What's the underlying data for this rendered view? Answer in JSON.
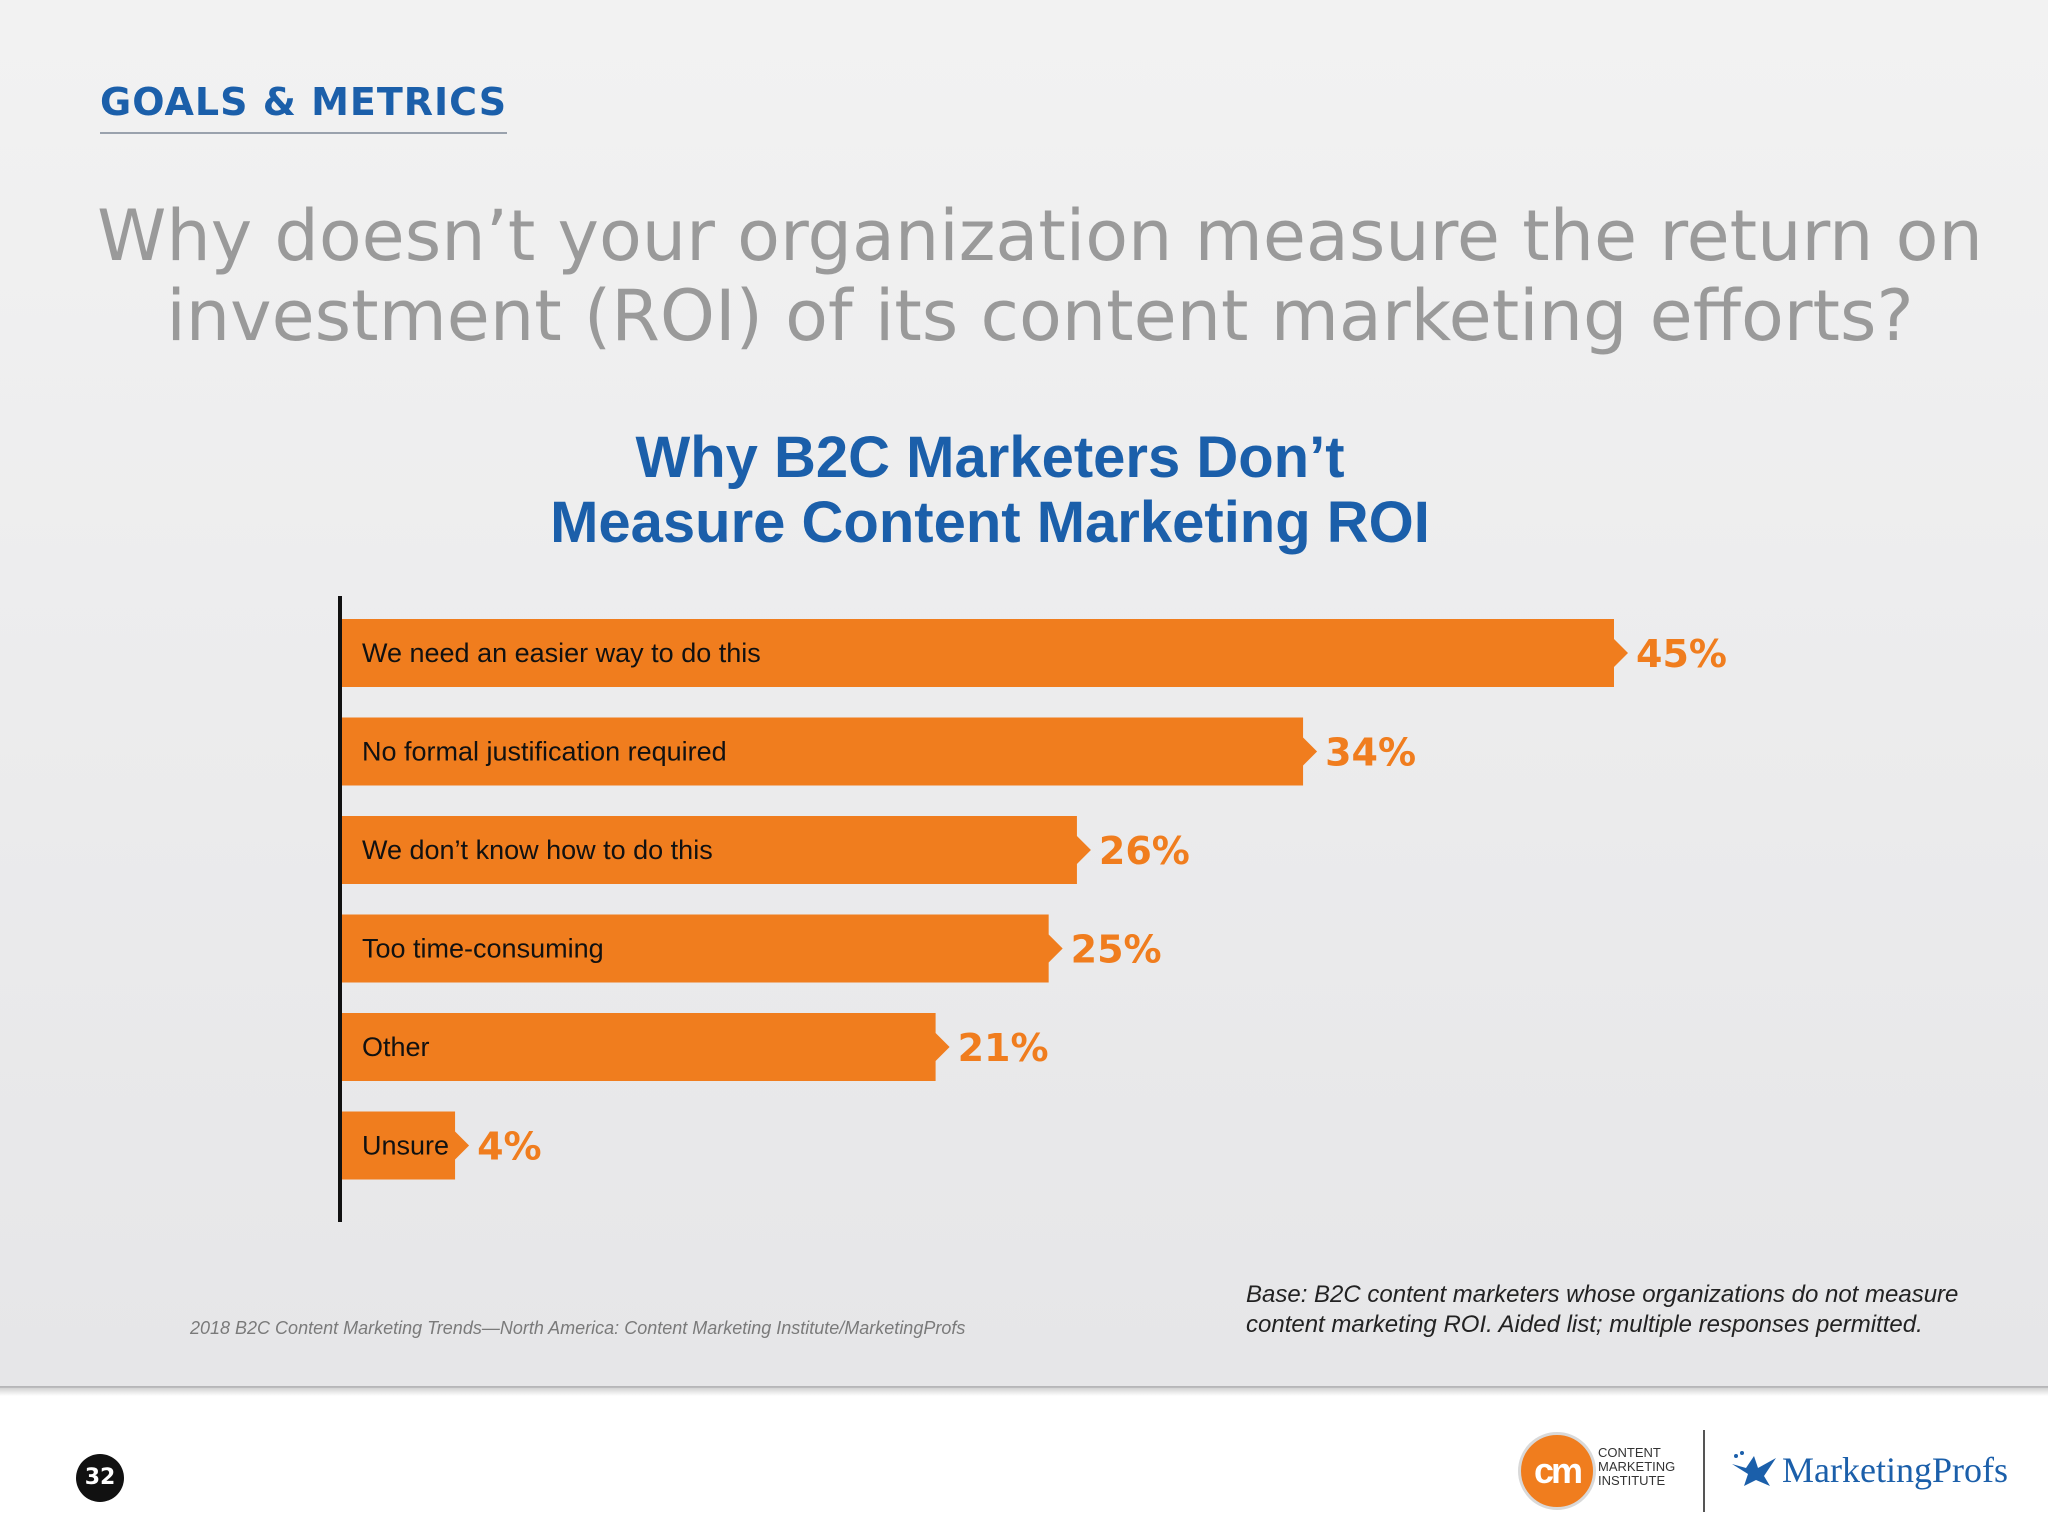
{
  "header": {
    "section_tag": "GOALS & METRICS",
    "question_line1": "Why doesn’t your organization measure the return on",
    "question_line2": "investment (ROI) of its content marketing efforts?"
  },
  "chart_data": {
    "type": "bar",
    "orientation": "horizontal",
    "title": "Why B2C Marketers Don’t Measure Content Marketing ROI",
    "title_line1": "Why B2C Marketers Don’t",
    "title_line2": "Measure Content Marketing ROI",
    "categories": [
      "We need an easier way to do this",
      "No formal justification required",
      "We don’t know how to do this",
      "Too time-consuming",
      "Other",
      "Unsure"
    ],
    "values": [
      45,
      34,
      26,
      25,
      21,
      4
    ],
    "value_labels": [
      "45%",
      "34%",
      "26%",
      "25%",
      "21%",
      "4%"
    ],
    "unit": "%",
    "xlim": [
      0,
      45
    ],
    "grid": false,
    "legend": "none",
    "bar_color": "#f07d1e",
    "label_color": "#f07d1e"
  },
  "footer": {
    "source": "2018 B2C Content Marketing Trends—North America: Content Marketing Institute/MarketingProfs",
    "base_line1": "Base: B2C content marketers whose organizations do not measure",
    "base_line2": "content marketing ROI. Aided list; multiple responses permitted.",
    "page_number": "32"
  },
  "logos": {
    "cmi_mark": "cm",
    "cmi_line1": "CONTENT",
    "cmi_line2": "MARKETING",
    "cmi_line3": "INSTITUTE",
    "marketingprofs": "MarketingProfs"
  },
  "colors": {
    "brand_blue": "#1b5faa",
    "accent_orange": "#f07d1e",
    "question_gray": "#9a9a9a"
  }
}
